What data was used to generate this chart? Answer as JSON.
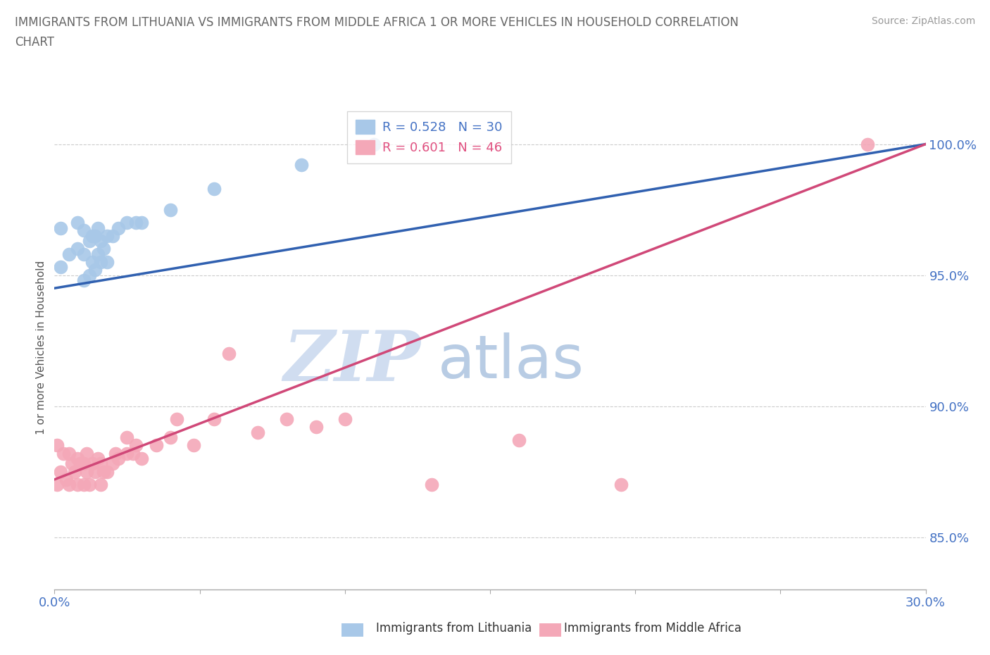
{
  "title_line1": "IMMIGRANTS FROM LITHUANIA VS IMMIGRANTS FROM MIDDLE AFRICA 1 OR MORE VEHICLES IN HOUSEHOLD CORRELATION",
  "title_line2": "CHART",
  "source": "Source: ZipAtlas.com",
  "ylabel": "1 or more Vehicles in Household",
  "xlim": [
    0.0,
    0.3
  ],
  "ylim": [
    0.83,
    1.015
  ],
  "xticks": [
    0.0,
    0.05,
    0.1,
    0.15,
    0.2,
    0.25,
    0.3
  ],
  "ytick_positions": [
    0.85,
    0.9,
    0.95,
    1.0
  ],
  "ytick_labels": [
    "85.0%",
    "90.0%",
    "95.0%",
    "100.0%"
  ],
  "lithuania_color": "#a8c8e8",
  "middle_africa_color": "#f4a8b8",
  "trend_lithuania_color": "#3060b0",
  "trend_middle_africa_color": "#d04878",
  "legend_text_lithuania_color": "#4472c4",
  "legend_text_middle_africa_color": "#e05080",
  "watermark_zip": "ZIP",
  "watermark_atlas": "atlas",
  "watermark_zip_color": "#d0ddf0",
  "watermark_atlas_color": "#b8cce4",
  "R_lithuania": 0.528,
  "N_lithuania": 30,
  "R_middle_africa": 0.601,
  "N_middle_africa": 46,
  "lithuania_x": [
    0.002,
    0.002,
    0.005,
    0.008,
    0.008,
    0.01,
    0.01,
    0.01,
    0.012,
    0.012,
    0.013,
    0.013,
    0.014,
    0.014,
    0.015,
    0.015,
    0.016,
    0.016,
    0.017,
    0.018,
    0.018,
    0.02,
    0.022,
    0.025,
    0.028,
    0.03,
    0.04,
    0.055,
    0.085,
    0.11
  ],
  "lithuania_y": [
    0.953,
    0.968,
    0.958,
    0.96,
    0.97,
    0.948,
    0.958,
    0.967,
    0.95,
    0.963,
    0.955,
    0.965,
    0.952,
    0.965,
    0.958,
    0.968,
    0.955,
    0.963,
    0.96,
    0.955,
    0.965,
    0.965,
    0.968,
    0.97,
    0.97,
    0.97,
    0.975,
    0.983,
    0.992,
    1.0
  ],
  "middle_africa_x": [
    0.001,
    0.001,
    0.002,
    0.003,
    0.004,
    0.005,
    0.005,
    0.006,
    0.007,
    0.008,
    0.008,
    0.009,
    0.01,
    0.01,
    0.011,
    0.011,
    0.012,
    0.013,
    0.014,
    0.015,
    0.016,
    0.016,
    0.017,
    0.018,
    0.02,
    0.021,
    0.022,
    0.025,
    0.025,
    0.027,
    0.028,
    0.03,
    0.035,
    0.04,
    0.042,
    0.048,
    0.055,
    0.06,
    0.07,
    0.08,
    0.09,
    0.1,
    0.13,
    0.16,
    0.195,
    0.28
  ],
  "middle_africa_y": [
    0.87,
    0.885,
    0.875,
    0.882,
    0.872,
    0.87,
    0.882,
    0.878,
    0.875,
    0.87,
    0.88,
    0.878,
    0.87,
    0.878,
    0.875,
    0.882,
    0.87,
    0.878,
    0.875,
    0.88,
    0.87,
    0.878,
    0.875,
    0.875,
    0.878,
    0.882,
    0.88,
    0.882,
    0.888,
    0.882,
    0.885,
    0.88,
    0.885,
    0.888,
    0.895,
    0.885,
    0.895,
    0.92,
    0.89,
    0.895,
    0.892,
    0.895,
    0.87,
    0.887,
    0.87,
    1.0
  ],
  "trend_lith_x0": 0.0,
  "trend_lith_y0": 0.945,
  "trend_lith_x1": 0.3,
  "trend_lith_y1": 1.0,
  "trend_maf_x0": 0.0,
  "trend_maf_y0": 0.872,
  "trend_maf_x1": 0.3,
  "trend_maf_y1": 1.0
}
